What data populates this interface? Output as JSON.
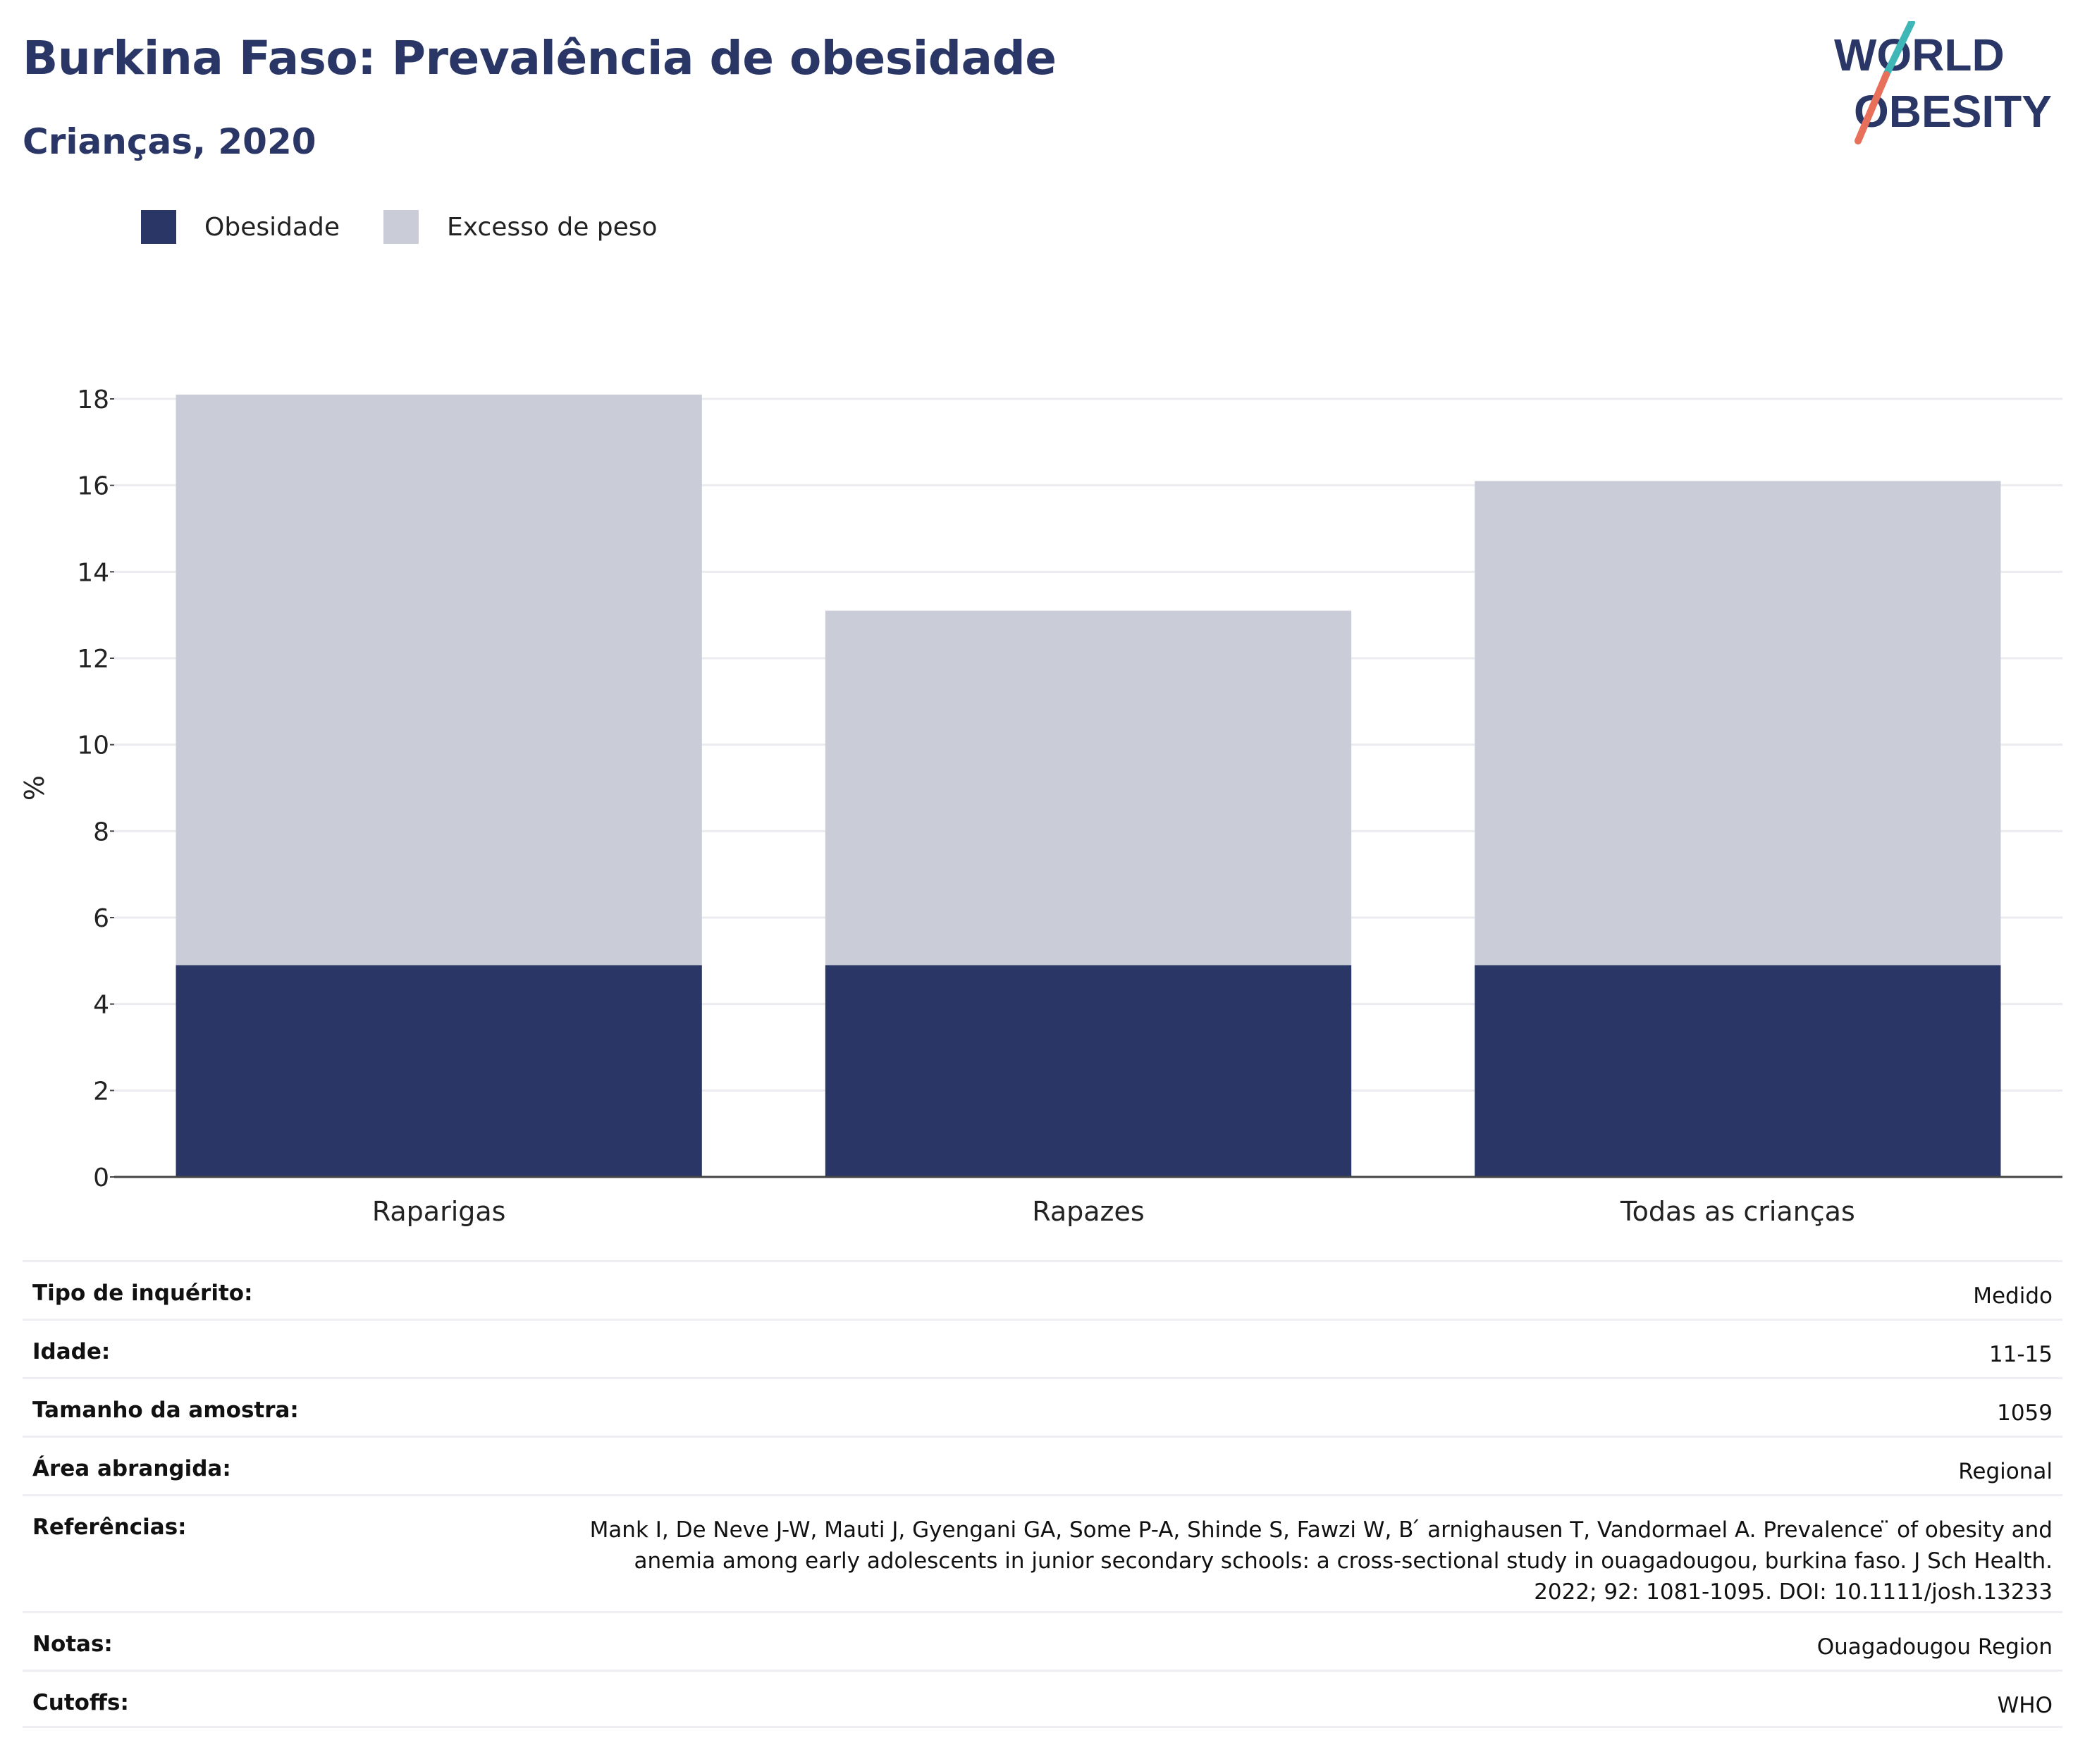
{
  "header": {
    "title": "Burkina Faso: Prevalência de obesidade",
    "subtitle": "Crianças, 2020"
  },
  "logo": {
    "line1": "WORLD",
    "line2": "OBESITY"
  },
  "colors": {
    "obesity": "#2a3766",
    "overweight": "#cacdd8",
    "brand_teal": "#3fb7b7",
    "brand_coral": "#e8705a"
  },
  "chart_data": {
    "type": "bar",
    "stacked": true,
    "categories": [
      "Raparigas",
      "Rapazes",
      "Todas as crianças"
    ],
    "series": [
      {
        "name": "Obesidade",
        "values": [
          4.9,
          4.9,
          4.9
        ]
      },
      {
        "name": "Excesso de peso",
        "values": [
          13.2,
          8.2,
          11.2
        ]
      }
    ],
    "totals": [
      18.1,
      13.1,
      16.1
    ],
    "ylabel": "%",
    "yticks": [
      0,
      2,
      4,
      6,
      8,
      10,
      12,
      14,
      16,
      18
    ],
    "ylim": [
      0,
      18
    ],
    "grid": true,
    "legend_position": "top-left"
  },
  "details": [
    {
      "label": "Tipo de inquérito:",
      "value": "Medido"
    },
    {
      "label": "Idade:",
      "value": "11-15"
    },
    {
      "label": "Tamanho da amostra:",
      "value": "1059"
    },
    {
      "label": "Área abrangida:",
      "value": "Regional"
    },
    {
      "label": "Referências:",
      "value": "Mank I, De Neve J-W, Mauti J, Gyengani GA, Some P-A, Shinde S, Fawzi W, B ́ arnighausen T, Vandormael A. Prevalence ̈ of obesity and anemia among early adolescents in junior secondary schools: a cross-sectional study in ouagadougou, burkina faso. J Sch Health. 2022; 92: 1081-1095. DOI: 10.1111/josh.13233"
    },
    {
      "label": "Notas:",
      "value": "Ouagadougou Region"
    },
    {
      "label": "Cutoffs:",
      "value": "WHO"
    }
  ]
}
